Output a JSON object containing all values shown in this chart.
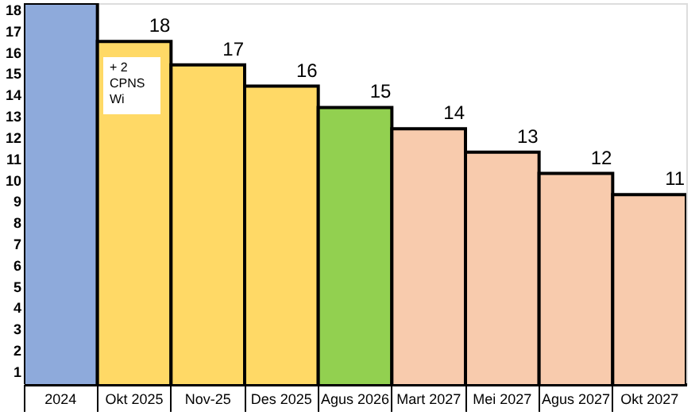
{
  "chart_data": {
    "type": "bar",
    "categories": [
      "2024",
      "Okt 2025",
      "Nov-25",
      "Des 2025",
      "Agus 2026",
      "Mart 2027",
      "Mei 2027",
      "Agus 2027",
      "Okt 2027"
    ],
    "values": [
      18.3,
      16.5,
      15.4,
      14.4,
      13.4,
      12.4,
      11.3,
      10.3,
      9.3
    ],
    "colors": [
      "#8eaadb",
      "#ffd966",
      "#ffd966",
      "#ffd966",
      "#92d050",
      "#f8cbad",
      "#f8cbad",
      "#f8cbad",
      "#f8cbad"
    ],
    "annotations": [
      "+ 2\nCPNS\nWi",
      {
        "text": "18",
        "x": "Okt 2025",
        "y": 16.5
      },
      {
        "text": "17",
        "x": "Nov-25",
        "y": 15.4
      },
      {
        "text": "16",
        "x": "Des 2025",
        "y": 14.4
      },
      {
        "text": "15",
        "x": "Agus 2026",
        "y": 13.4
      },
      {
        "text": "14",
        "x": "Mart 2027",
        "y": 12.4
      },
      {
        "text": "13",
        "x": "Mei 2027",
        "y": 11.3
      },
      {
        "text": "12",
        "x": "Agus 2027",
        "y": 10.3
      },
      {
        "text": "11",
        "x": "Okt 2027",
        "y": 9.3
      }
    ],
    "ylim": [
      0.4,
      18.3
    ],
    "yticks": [
      1,
      2,
      3,
      4,
      5,
      6,
      7,
      8,
      9,
      10,
      11,
      12,
      13,
      14,
      15,
      16,
      17,
      18
    ],
    "grid": false
  }
}
